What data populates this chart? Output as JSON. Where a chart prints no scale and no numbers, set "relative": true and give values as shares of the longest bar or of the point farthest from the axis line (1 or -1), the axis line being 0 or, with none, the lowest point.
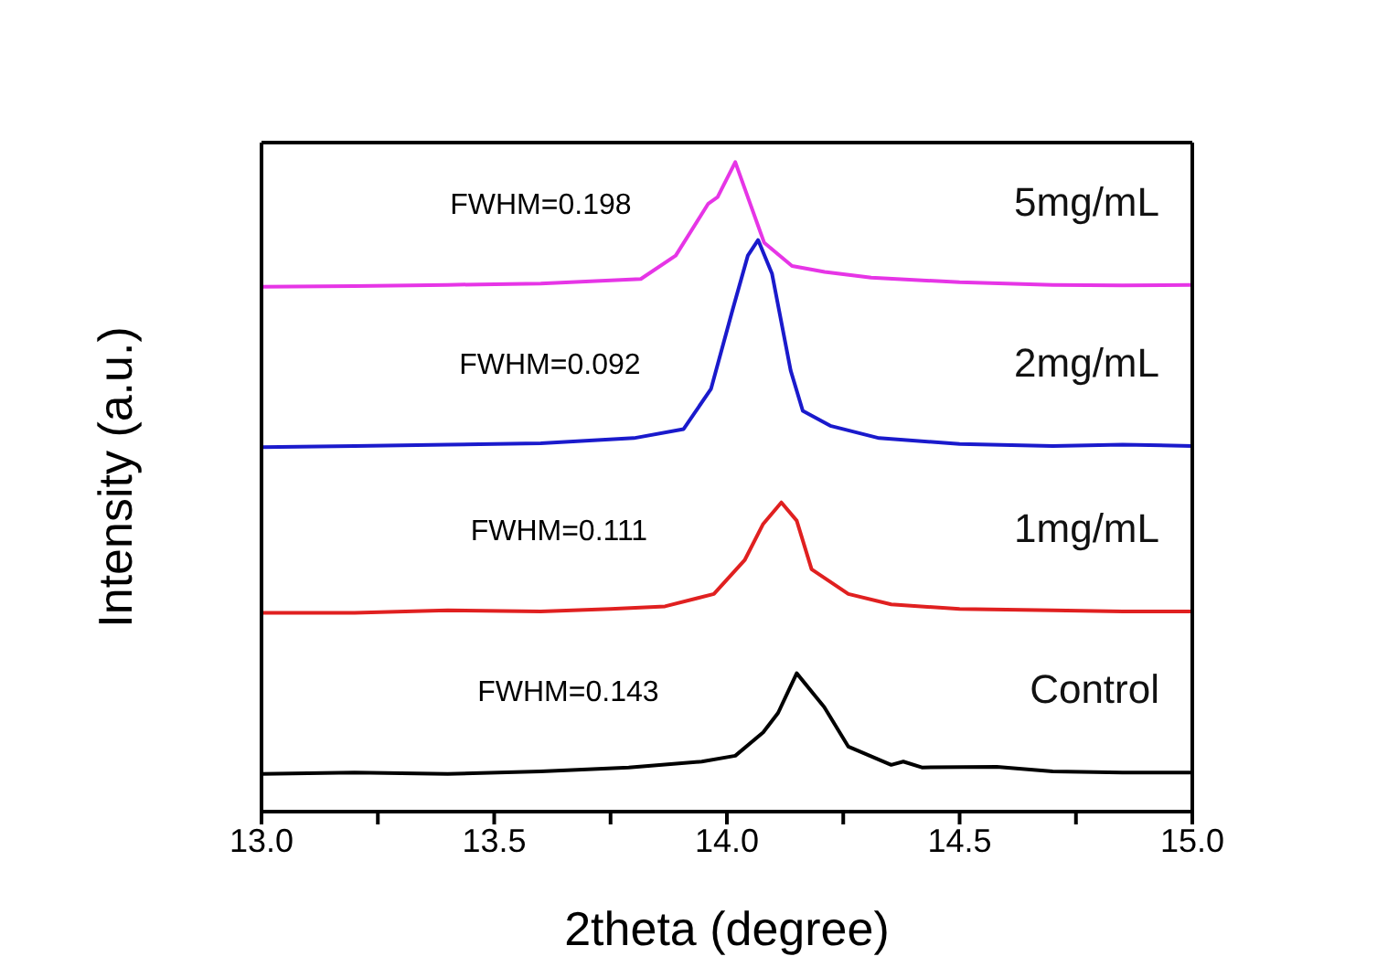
{
  "chart_data": {
    "type": "line",
    "relative": true,
    "xlabel": "2theta (degree)",
    "ylabel": "Intensity (a.u.)",
    "xlim": [
      13,
      15
    ],
    "xticks": [
      {
        "value": 13,
        "label": "13.0"
      },
      {
        "value": 13.25,
        "label": null
      },
      {
        "value": 13.5,
        "label": "13.5"
      },
      {
        "value": 13.75,
        "label": null
      },
      {
        "value": 14,
        "label": "14.0"
      },
      {
        "value": 14.25,
        "label": null
      },
      {
        "value": 14.5,
        "label": "14.5"
      },
      {
        "value": 14.75,
        "label": null
      },
      {
        "value": 15,
        "label": "15.0"
      }
    ],
    "tick_labels": "x",
    "marker": "none",
    "series": [
      {
        "name": "5mg/mL",
        "color": "#e635e6",
        "x": [
          13.0,
          13.2,
          13.4,
          13.6,
          13.815,
          13.89,
          13.96,
          13.98,
          14.018,
          14.08,
          14.14,
          14.21,
          14.31,
          14.5,
          14.7,
          14.85,
          15.0
        ],
        "values": [
          0.808,
          0.809,
          0.811,
          0.813,
          0.82,
          0.856,
          0.936,
          0.946,
          1.0,
          0.876,
          0.84,
          0.831,
          0.822,
          0.815,
          0.811,
          0.81,
          0.811
        ]
      },
      {
        "name": "2mg/mL",
        "color": "#1a1acc",
        "x": [
          13.0,
          13.2,
          13.4,
          13.6,
          13.8,
          13.907,
          13.966,
          14.012,
          14.045,
          14.067,
          14.097,
          14.137,
          14.163,
          14.222,
          14.327,
          14.5,
          14.7,
          14.85,
          15.0
        ],
        "values": [
          0.561,
          0.563,
          0.565,
          0.567,
          0.575,
          0.589,
          0.651,
          0.772,
          0.856,
          0.88,
          0.828,
          0.679,
          0.617,
          0.594,
          0.575,
          0.566,
          0.563,
          0.565,
          0.563
        ]
      },
      {
        "name": "1mg/mL",
        "color": "#e02020",
        "x": [
          13.0,
          13.2,
          13.4,
          13.6,
          13.75,
          13.867,
          13.972,
          14.038,
          14.078,
          14.117,
          14.15,
          14.182,
          14.261,
          14.353,
          14.5,
          14.7,
          14.85,
          15.0
        ],
        "values": [
          0.306,
          0.306,
          0.31,
          0.308,
          0.312,
          0.316,
          0.335,
          0.387,
          0.443,
          0.476,
          0.448,
          0.373,
          0.335,
          0.319,
          0.312,
          0.31,
          0.308,
          0.308
        ]
      },
      {
        "name": "Control",
        "color": "#000000",
        "x": [
          13.0,
          13.2,
          13.4,
          13.6,
          13.789,
          13.946,
          14.018,
          14.078,
          14.11,
          14.15,
          14.209,
          14.261,
          14.353,
          14.379,
          14.419,
          14.58,
          14.7,
          14.85,
          15.0
        ],
        "values": [
          0.058,
          0.06,
          0.058,
          0.062,
          0.068,
          0.077,
          0.086,
          0.122,
          0.152,
          0.213,
          0.161,
          0.1,
          0.072,
          0.077,
          0.068,
          0.069,
          0.062,
          0.06,
          0.06
        ]
      }
    ],
    "annotations": [
      "FWHM=0.198",
      "FWHM=0.092",
      "FWHM=0.111",
      "FWHM=0.143"
    ]
  }
}
